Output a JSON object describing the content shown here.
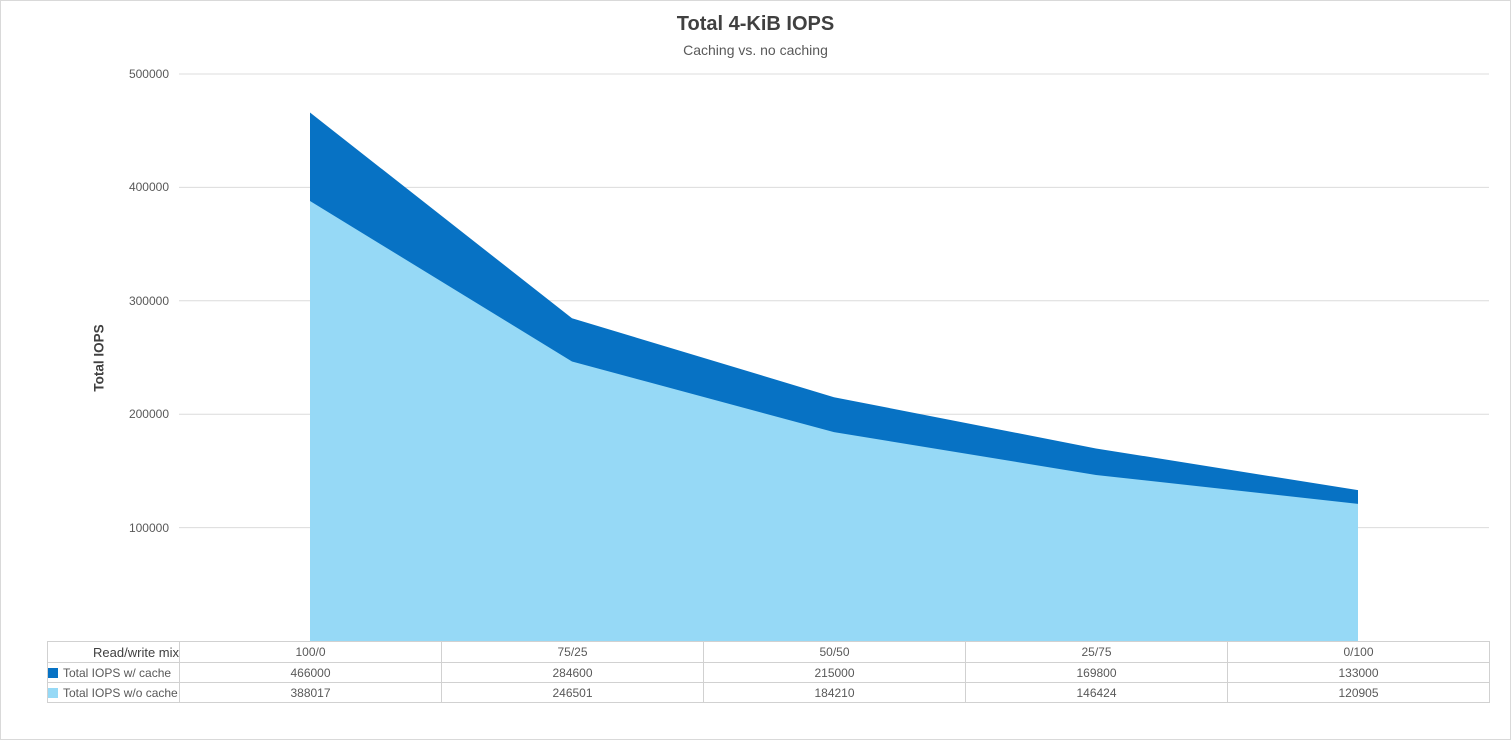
{
  "chart_data": {
    "type": "area",
    "title": "Total 4-KiB IOPS",
    "subtitle": "Caching vs. no caching",
    "ylabel": "Total IOPS",
    "categories": [
      "100/0",
      "75/25",
      "50/50",
      "25/75",
      "0/100"
    ],
    "series": [
      {
        "name": "Total IOPS w/ cache",
        "color": "#0772C4",
        "values": [
          466000,
          284600,
          215000,
          169800,
          133000
        ]
      },
      {
        "name": "Total IOPS w/o cache",
        "color": "#96D9F6",
        "values": [
          388017,
          246501,
          184210,
          146424,
          120905
        ]
      }
    ],
    "ylim": [
      0,
      500000
    ],
    "yticks": [
      500000,
      400000,
      300000,
      200000,
      100000
    ],
    "grid": true,
    "legend_position": "table-left"
  },
  "table": {
    "row_header": "Read/write mix"
  },
  "colors": {
    "gridline": "#dcdcdc",
    "table_border": "#d1d1d1",
    "outer_border": "#d9d9d9",
    "title_text": "#404040",
    "secondary_text": "#595959"
  }
}
